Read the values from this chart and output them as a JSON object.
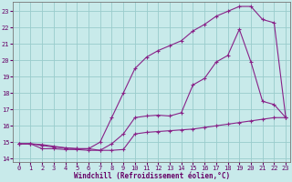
{
  "xlabel": "Windchill (Refroidissement éolien,°C)",
  "background_color": "#c8eaea",
  "grid_color": "#99cccc",
  "line_color": "#882288",
  "xlim_min": -0.5,
  "xlim_max": 23.4,
  "ylim_min": 13.8,
  "ylim_max": 23.6,
  "yticks": [
    14,
    15,
    16,
    17,
    18,
    19,
    20,
    21,
    22,
    23
  ],
  "xticks": [
    0,
    1,
    2,
    3,
    4,
    5,
    6,
    7,
    8,
    9,
    10,
    11,
    12,
    13,
    14,
    15,
    16,
    17,
    18,
    19,
    20,
    21,
    22,
    23
  ],
  "line1_x": [
    0,
    1,
    2,
    3,
    4,
    5,
    6,
    7,
    8,
    9,
    10,
    11,
    12,
    13,
    14,
    15,
    16,
    17,
    18,
    19,
    20,
    21,
    22,
    23
  ],
  "line1_y": [
    14.9,
    14.9,
    14.8,
    14.7,
    14.65,
    14.6,
    14.6,
    14.5,
    14.5,
    14.55,
    15.5,
    15.6,
    15.65,
    15.7,
    15.75,
    15.8,
    15.9,
    16.0,
    16.1,
    16.2,
    16.3,
    16.4,
    16.5,
    16.5
  ],
  "line2_x": [
    0,
    1,
    2,
    3,
    4,
    5,
    6,
    7,
    8,
    9,
    10,
    11,
    12,
    13,
    14,
    15,
    16,
    17,
    18,
    19,
    20,
    21,
    22,
    23
  ],
  "line2_y": [
    14.9,
    14.9,
    14.6,
    14.6,
    14.55,
    14.55,
    14.5,
    14.5,
    14.9,
    15.5,
    16.5,
    16.6,
    16.65,
    16.6,
    16.8,
    18.5,
    18.9,
    19.9,
    20.3,
    21.9,
    19.9,
    17.5,
    17.3,
    16.5
  ],
  "line3_x": [
    0,
    1,
    2,
    3,
    4,
    5,
    6,
    7,
    8,
    9,
    10,
    11,
    12,
    13,
    14,
    15,
    16,
    17,
    18,
    19,
    20,
    21,
    22,
    23
  ],
  "line3_y": [
    14.9,
    14.9,
    14.85,
    14.75,
    14.65,
    14.6,
    14.6,
    15.0,
    16.5,
    18.0,
    19.5,
    20.2,
    20.6,
    20.9,
    21.2,
    21.8,
    22.2,
    22.7,
    23.0,
    23.3,
    23.3,
    22.5,
    22.3,
    16.5
  ]
}
